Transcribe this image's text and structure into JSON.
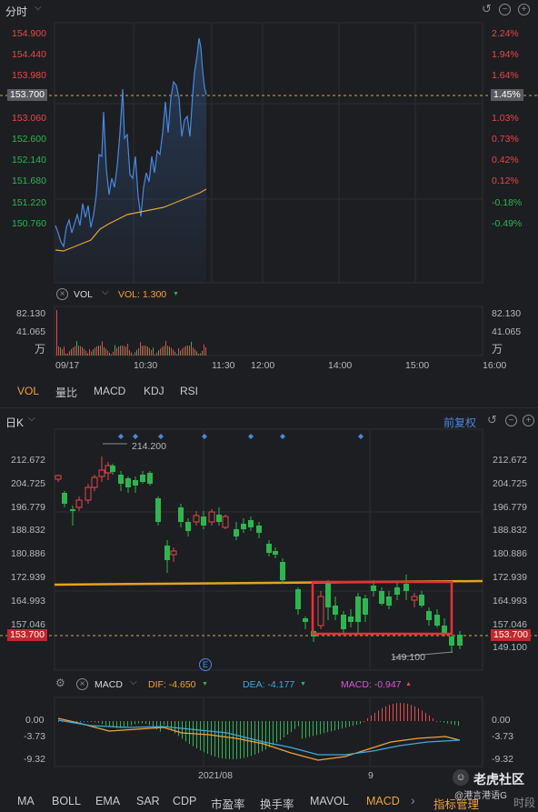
{
  "intraday": {
    "title": "分时",
    "price_ticks": [
      "154.900",
      "154.440",
      "153.980",
      "153.520",
      "153.060",
      "152.600",
      "152.140",
      "151.680",
      "151.220",
      "150.760"
    ],
    "pct_ticks": [
      "2.24%",
      "1.94%",
      "1.64%",
      "1.33%",
      "1.03%",
      "0.73%",
      "0.42%",
      "0.12%",
      "-0.18%",
      "-0.49%"
    ],
    "current_price": "153.700",
    "current_pct": "1.45%",
    "vol_label": "VOL",
    "vol_value": "VOL: 1.300",
    "vol_ticks": [
      "82.130",
      "41.065",
      "万"
    ],
    "vol_ticks_right": [
      "82.130",
      "41.065",
      "万"
    ],
    "time_ticks": [
      "09/17",
      "10:30",
      "11:30",
      "12:00",
      "14:00",
      "15:00",
      "16:00"
    ],
    "indicator_tabs": [
      "VOL",
      "量比",
      "MACD",
      "KDJ",
      "RSI"
    ]
  },
  "daily": {
    "title": "日K",
    "adjust_label": "前复权",
    "price_ticks": [
      "212.672",
      "204.725",
      "196.779",
      "188.832",
      "180.886",
      "172.939",
      "164.993",
      "157.046",
      "149.100"
    ],
    "current_price": "153.700",
    "high_label": "214.200",
    "low_label": "149.100",
    "event_marker": "E",
    "macd_label": "MACD",
    "dif": "DIF: -4.650",
    "dea": "DEA: -4.177",
    "macd": "MACD: -0.947",
    "macd_ticks": [
      "0.00",
      "-3.73",
      "-9.32"
    ],
    "date_ticks": [
      "2021/08",
      "9"
    ]
  },
  "bottom_tabs": [
    "MA",
    "BOLL",
    "EMA",
    "SAR",
    "CDP",
    "市盈率",
    "换手率",
    "MAVOL",
    "MACD"
  ],
  "bottom_more": "›",
  "bottom_manage": "指标管理",
  "bottom_period": "时段",
  "watermark": "老虎社区",
  "watermark_sub": "@港言港语G",
  "colors": {
    "up": "#e8474b",
    "down": "#2fb54f",
    "accent": "#f0a23a",
    "price_line": "#4a88e0"
  }
}
